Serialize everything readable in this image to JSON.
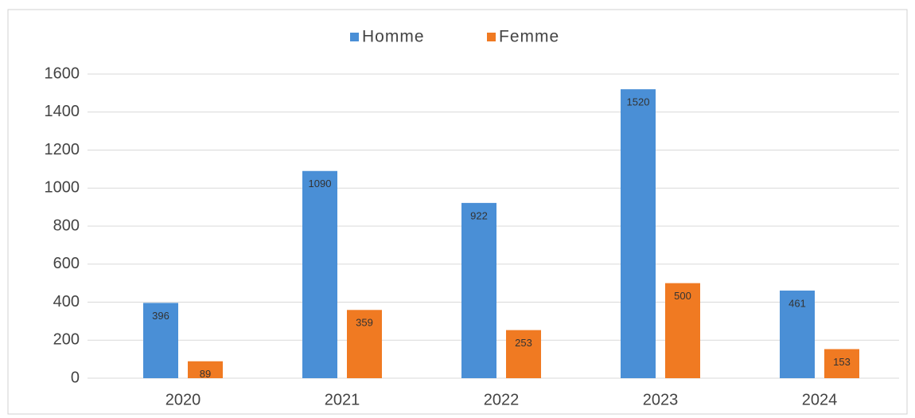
{
  "chart_data": {
    "type": "bar",
    "categories": [
      "2020",
      "2021",
      "2022",
      "2023",
      "2024"
    ],
    "series": [
      {
        "name": "Homme",
        "color": "#4a8fd6",
        "values": [
          396,
          1090,
          922,
          1520,
          461
        ]
      },
      {
        "name": "Femme",
        "color": "#f07a22",
        "values": [
          89,
          359,
          253,
          500,
          153
        ]
      }
    ],
    "ylim": [
      0,
      1600
    ],
    "yticks": [
      0,
      200,
      400,
      600,
      800,
      1000,
      1200,
      1400,
      1600
    ],
    "grid": true,
    "legend": "top"
  }
}
